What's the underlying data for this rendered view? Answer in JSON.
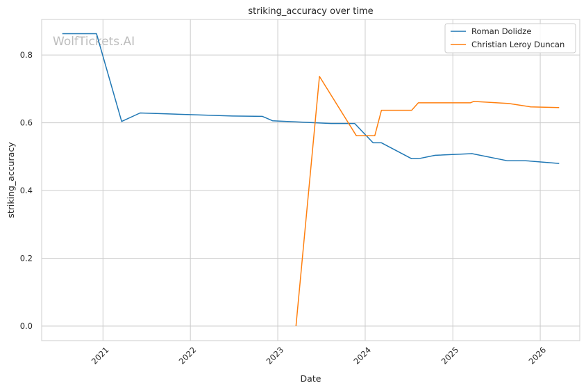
{
  "chart_data": {
    "type": "line",
    "title": "striking_accuracy over time",
    "xlabel": "Date",
    "ylabel": "striking_accuracy",
    "watermark": "WolfTickets.AI",
    "xlim": [
      "2020-04-20",
      "2026-06-15"
    ],
    "ylim": [
      -0.043,
      0.905
    ],
    "x_ticks": [
      "2021-01-01",
      "2022-01-01",
      "2023-01-01",
      "2024-01-01",
      "2025-01-01",
      "2026-01-01"
    ],
    "x_tick_labels": [
      "2021",
      "2022",
      "2023",
      "2024",
      "2025",
      "2026"
    ],
    "y_ticks": [
      0.0,
      0.2,
      0.4,
      0.6,
      0.8
    ],
    "y_tick_labels": [
      "0.0",
      "0.2",
      "0.4",
      "0.6",
      "0.8"
    ],
    "grid": true,
    "legend_position": "top-right",
    "series": [
      {
        "name": "Roman Dolidze",
        "color": "#1f77b4",
        "points": [
          [
            "2020-07-15",
            0.863
          ],
          [
            "2020-12-05",
            0.863
          ],
          [
            "2021-03-20",
            0.604
          ],
          [
            "2021-06-05",
            0.629
          ],
          [
            "2022-06-25",
            0.62
          ],
          [
            "2022-10-29",
            0.619
          ],
          [
            "2022-12-10",
            0.606
          ],
          [
            "2023-08-12",
            0.598
          ],
          [
            "2023-11-18",
            0.598
          ],
          [
            "2024-02-03",
            0.541
          ],
          [
            "2024-03-09",
            0.541
          ],
          [
            "2024-07-13",
            0.494
          ],
          [
            "2024-08-10",
            0.494
          ],
          [
            "2024-10-19",
            0.504
          ],
          [
            "2025-03-22",
            0.509
          ],
          [
            "2025-08-16",
            0.488
          ],
          [
            "2025-11-01",
            0.488
          ],
          [
            "2026-03-21",
            0.48
          ]
        ]
      },
      {
        "name": "Christian Leroy Duncan",
        "color": "#ff7f0e",
        "points": [
          [
            "2023-03-18",
            0.0
          ],
          [
            "2023-06-24",
            0.737
          ],
          [
            "2023-11-25",
            0.562
          ],
          [
            "2024-02-10",
            0.562
          ],
          [
            "2024-03-09",
            0.637
          ],
          [
            "2024-07-13",
            0.637
          ],
          [
            "2024-08-10",
            0.659
          ],
          [
            "2025-03-15",
            0.659
          ],
          [
            "2025-03-29",
            0.663
          ],
          [
            "2025-08-23",
            0.657
          ],
          [
            "2025-11-22",
            0.647
          ],
          [
            "2026-03-21",
            0.645
          ]
        ]
      }
    ]
  }
}
